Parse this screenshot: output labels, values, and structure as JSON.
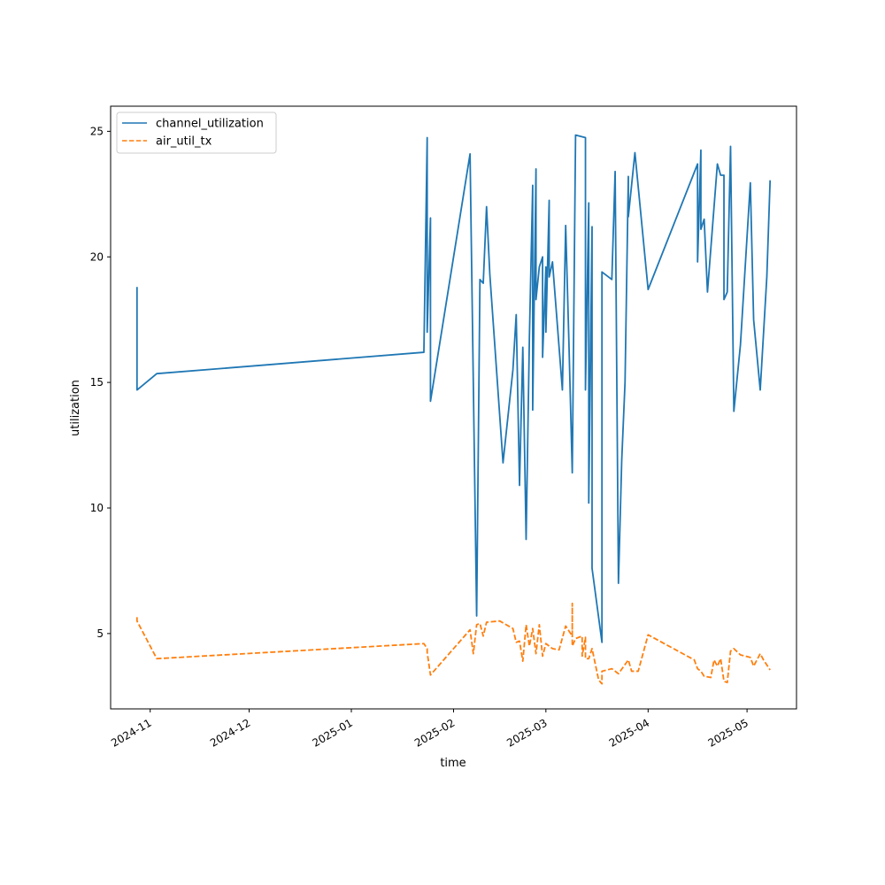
{
  "chart_data": {
    "type": "line",
    "xlabel": "time",
    "ylabel": "utilization",
    "x_axis": {
      "type": "date",
      "range": [
        "2024-10-20",
        "2025-05-16"
      ],
      "ticks": [
        "2024-11-01",
        "2024-12-01",
        "2025-01-01",
        "2025-02-01",
        "2025-03-01",
        "2025-04-01",
        "2025-05-01"
      ],
      "tick_labels": [
        "2024-11",
        "2024-12",
        "2025-01",
        "2025-02",
        "2025-03",
        "2025-04",
        "2025-05"
      ]
    },
    "y_axis": {
      "range": [
        2,
        26
      ],
      "ticks": [
        5,
        10,
        15,
        20,
        25
      ],
      "tick_labels": [
        "5",
        "10",
        "15",
        "20",
        "25"
      ]
    },
    "grid": false,
    "legend_position": "top-left",
    "series": [
      {
        "name": "channel_utilization",
        "color": "#1f77b4",
        "style": "solid",
        "points": [
          [
            "2024-10-28",
            18.8
          ],
          [
            "2024-10-28",
            14.7
          ],
          [
            "2024-11-03",
            15.35
          ],
          [
            "2025-01-23",
            16.2
          ],
          [
            "2025-01-24",
            24.75
          ],
          [
            "2025-01-24",
            17.0
          ],
          [
            "2025-01-25",
            21.55
          ],
          [
            "2025-01-25",
            14.25
          ],
          [
            "2025-02-06",
            24.1
          ],
          [
            "2025-02-08",
            5.7
          ],
          [
            "2025-02-09",
            19.1
          ],
          [
            "2025-02-10",
            18.95
          ],
          [
            "2025-02-11",
            22.0
          ],
          [
            "2025-02-12",
            19.3
          ],
          [
            "2025-02-16",
            11.8
          ],
          [
            "2025-02-19",
            15.5
          ],
          [
            "2025-02-20",
            17.7
          ],
          [
            "2025-02-21",
            10.9
          ],
          [
            "2025-02-22",
            16.4
          ],
          [
            "2025-02-23",
            8.75
          ],
          [
            "2025-02-24",
            16.8
          ],
          [
            "2025-02-25",
            22.85
          ],
          [
            "2025-02-25",
            13.9
          ],
          [
            "2025-02-26",
            23.5
          ],
          [
            "2025-02-26",
            18.3
          ],
          [
            "2025-02-27",
            19.6
          ],
          [
            "2025-02-28",
            20.0
          ],
          [
            "2025-02-28",
            16.0
          ],
          [
            "2025-03-01",
            19.6
          ],
          [
            "2025-03-01",
            17.0
          ],
          [
            "2025-03-02",
            22.25
          ],
          [
            "2025-03-02",
            19.2
          ],
          [
            "2025-03-03",
            19.8
          ],
          [
            "2025-03-06",
            14.7
          ],
          [
            "2025-03-07",
            21.25
          ],
          [
            "2025-03-08",
            16.5
          ],
          [
            "2025-03-09",
            11.4
          ],
          [
            "2025-03-10",
            24.85
          ],
          [
            "2025-03-13",
            24.75
          ],
          [
            "2025-03-13",
            14.7
          ],
          [
            "2025-03-14",
            22.15
          ],
          [
            "2025-03-14",
            10.2
          ],
          [
            "2025-03-15",
            21.2
          ],
          [
            "2025-03-15",
            7.6
          ],
          [
            "2025-03-18",
            4.65
          ],
          [
            "2025-03-18",
            19.4
          ],
          [
            "2025-03-21",
            19.1
          ],
          [
            "2025-03-22",
            23.4
          ],
          [
            "2025-03-23",
            7.0
          ],
          [
            "2025-03-24",
            11.9
          ],
          [
            "2025-03-25",
            15.0
          ],
          [
            "2025-03-26",
            23.2
          ],
          [
            "2025-03-26",
            21.6
          ],
          [
            "2025-03-28",
            24.15
          ],
          [
            "2025-04-01",
            18.7
          ],
          [
            "2025-04-16",
            23.7
          ],
          [
            "2025-04-16",
            19.8
          ],
          [
            "2025-04-17",
            24.25
          ],
          [
            "2025-04-17",
            21.1
          ],
          [
            "2025-04-18",
            21.5
          ],
          [
            "2025-04-19",
            18.6
          ],
          [
            "2025-04-22",
            23.7
          ],
          [
            "2025-04-23",
            23.25
          ],
          [
            "2025-04-24",
            23.25
          ],
          [
            "2025-04-24",
            18.3
          ],
          [
            "2025-04-25",
            18.6
          ],
          [
            "2025-04-26",
            24.4
          ],
          [
            "2025-04-27",
            13.85
          ],
          [
            "2025-04-29",
            16.5
          ],
          [
            "2025-05-02",
            22.95
          ],
          [
            "2025-05-03",
            17.5
          ],
          [
            "2025-05-05",
            14.7
          ],
          [
            "2025-05-07",
            19.2
          ],
          [
            "2025-05-08",
            23.05
          ]
        ]
      },
      {
        "name": "air_util_tx",
        "color": "#ff7f0e",
        "style": "dashed",
        "points": [
          [
            "2024-10-28",
            5.65
          ],
          [
            "2024-10-28",
            5.5
          ],
          [
            "2024-11-03",
            4.0
          ],
          [
            "2025-01-23",
            4.6
          ],
          [
            "2025-01-24",
            4.4
          ],
          [
            "2025-01-24",
            4.25
          ],
          [
            "2025-01-25",
            3.35
          ],
          [
            "2025-02-06",
            5.15
          ],
          [
            "2025-02-07",
            4.2
          ],
          [
            "2025-02-08",
            5.35
          ],
          [
            "2025-02-09",
            5.4
          ],
          [
            "2025-02-10",
            4.9
          ],
          [
            "2025-02-11",
            5.45
          ],
          [
            "2025-02-15",
            5.5
          ],
          [
            "2025-02-19",
            5.2
          ],
          [
            "2025-02-20",
            4.65
          ],
          [
            "2025-02-21",
            4.7
          ],
          [
            "2025-02-22",
            3.9
          ],
          [
            "2025-02-23",
            5.35
          ],
          [
            "2025-02-24",
            4.5
          ],
          [
            "2025-02-25",
            5.2
          ],
          [
            "2025-02-26",
            4.2
          ],
          [
            "2025-02-27",
            5.35
          ],
          [
            "2025-02-28",
            4.1
          ],
          [
            "2025-03-01",
            4.6
          ],
          [
            "2025-03-03",
            4.4
          ],
          [
            "2025-03-05",
            4.35
          ],
          [
            "2025-03-07",
            5.3
          ],
          [
            "2025-03-09",
            4.9
          ],
          [
            "2025-03-09",
            6.2
          ],
          [
            "2025-03-09",
            4.5
          ],
          [
            "2025-03-10",
            4.8
          ],
          [
            "2025-03-12",
            4.9
          ],
          [
            "2025-03-12",
            4.1
          ],
          [
            "2025-03-13",
            4.85
          ],
          [
            "2025-03-13",
            4.0
          ],
          [
            "2025-03-14",
            4.0
          ],
          [
            "2025-03-15",
            4.4
          ],
          [
            "2025-03-17",
            3.15
          ],
          [
            "2025-03-18",
            3.0
          ],
          [
            "2025-03-18",
            3.5
          ],
          [
            "2025-03-21",
            3.6
          ],
          [
            "2025-03-23",
            3.4
          ],
          [
            "2025-03-26",
            3.95
          ],
          [
            "2025-03-27",
            3.5
          ],
          [
            "2025-03-29",
            3.5
          ],
          [
            "2025-04-01",
            4.95
          ],
          [
            "2025-04-15",
            3.95
          ],
          [
            "2025-04-16",
            3.6
          ],
          [
            "2025-04-17",
            3.5
          ],
          [
            "2025-04-18",
            3.3
          ],
          [
            "2025-04-20",
            3.25
          ],
          [
            "2025-04-21",
            3.95
          ],
          [
            "2025-04-22",
            3.7
          ],
          [
            "2025-04-23",
            4.0
          ],
          [
            "2025-04-24",
            3.1
          ],
          [
            "2025-04-25",
            3.05
          ],
          [
            "2025-04-26",
            4.3
          ],
          [
            "2025-04-27",
            4.4
          ],
          [
            "2025-04-29",
            4.15
          ],
          [
            "2025-05-02",
            4.05
          ],
          [
            "2025-05-03",
            3.7
          ],
          [
            "2025-05-05",
            4.2
          ],
          [
            "2025-05-06",
            3.95
          ],
          [
            "2025-05-08",
            3.55
          ]
        ]
      }
    ]
  }
}
